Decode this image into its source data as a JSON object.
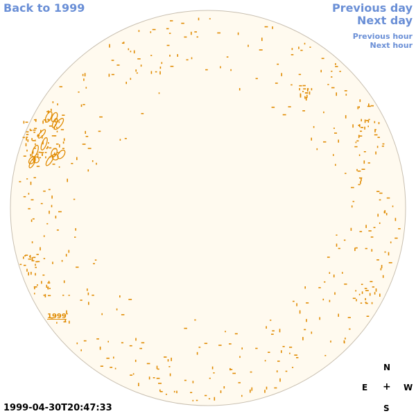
{
  "nav": {
    "back": "Back to 1999",
    "previous_day": "Previous day",
    "next_day": "Next day",
    "previous_hour": "Previous hour",
    "next_hour": "Next hour"
  },
  "timestamp": "1999-04-30T20:47:33",
  "compass": {
    "n": "N",
    "s": "S",
    "e": "E",
    "w": "W",
    "center": "+"
  },
  "disk": {
    "fill_color": "#fffaef",
    "outline_color": "#c8bfb0",
    "feature_color": "#e08a00",
    "year_label": "1999"
  }
}
